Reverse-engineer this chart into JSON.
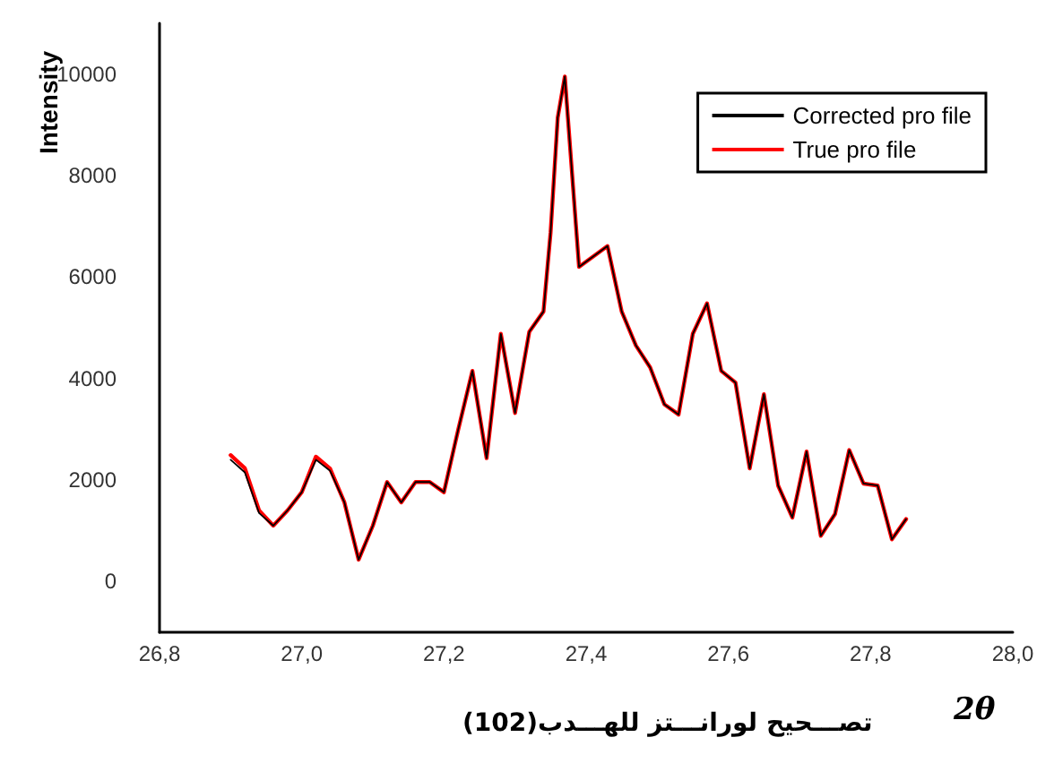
{
  "chart_data": {
    "type": "line",
    "ylabel": "Intensity",
    "xlabel": "2θ",
    "annotations": [
      "تصـــحيح لورانـــتز للهـــدب(102)"
    ],
    "xlim": [
      26.8,
      28.0
    ],
    "xticks": [
      {
        "value": 26.8,
        "label": "26,8"
      },
      {
        "value": 27.0,
        "label": "27,0"
      },
      {
        "value": 27.2,
        "label": "27,2"
      },
      {
        "value": 27.4,
        "label": "27,4"
      },
      {
        "value": 27.6,
        "label": "27,6"
      },
      {
        "value": 27.8,
        "label": "27,8"
      },
      {
        "value": 28.0,
        "label": "28,0"
      }
    ],
    "ylim": [
      -1000,
      11000
    ],
    "yticks": [
      0,
      2000,
      4000,
      6000,
      8000,
      10000
    ],
    "x": [
      26.9,
      26.92,
      26.94,
      26.96,
      26.98,
      27.0,
      27.02,
      27.04,
      27.06,
      27.08,
      27.1,
      27.12,
      27.14,
      27.16,
      27.18,
      27.2,
      27.22,
      27.24,
      27.26,
      27.28,
      27.3,
      27.32,
      27.34,
      27.35,
      27.36,
      27.37,
      27.39,
      27.43,
      27.45,
      27.47,
      27.49,
      27.51,
      27.53,
      27.55,
      27.57,
      27.59,
      27.61,
      27.63,
      27.65,
      27.67,
      27.69,
      27.71,
      27.73,
      27.75,
      27.77,
      27.79,
      27.81,
      27.83,
      27.85
    ],
    "series": [
      {
        "name": "Corrected pro file",
        "color": "#000000",
        "values": [
          2400,
          2150,
          1350,
          1100,
          1400,
          1760,
          2400,
          2180,
          1560,
          430,
          1100,
          1960,
          1560,
          1960,
          1960,
          1760,
          2990,
          4150,
          2430,
          4880,
          3320,
          4920,
          5320,
          6880,
          9140,
          9950,
          6200,
          6610,
          5320,
          4650,
          4220,
          3490,
          3290,
          4880,
          5480,
          4150,
          3920,
          2230,
          3690,
          1890,
          1260,
          2560,
          900,
          1330,
          2590,
          1930,
          1890,
          830,
          1230
        ]
      },
      {
        "name": "True pro file",
        "color": "#ff0000",
        "values": [
          2490,
          2230,
          1400,
          1100,
          1400,
          1760,
          2460,
          2220,
          1560,
          430,
          1100,
          1960,
          1560,
          1960,
          1960,
          1760,
          2990,
          4150,
          2430,
          4880,
          3320,
          4920,
          5320,
          6880,
          9140,
          9950,
          6200,
          6610,
          5320,
          4650,
          4220,
          3490,
          3290,
          4880,
          5480,
          4150,
          3920,
          2230,
          3690,
          1890,
          1260,
          2560,
          900,
          1330,
          2590,
          1930,
          1890,
          830,
          1230
        ]
      }
    ],
    "legend": "top right",
    "grid": false,
    "marker": "none",
    "line_style": "solid"
  }
}
